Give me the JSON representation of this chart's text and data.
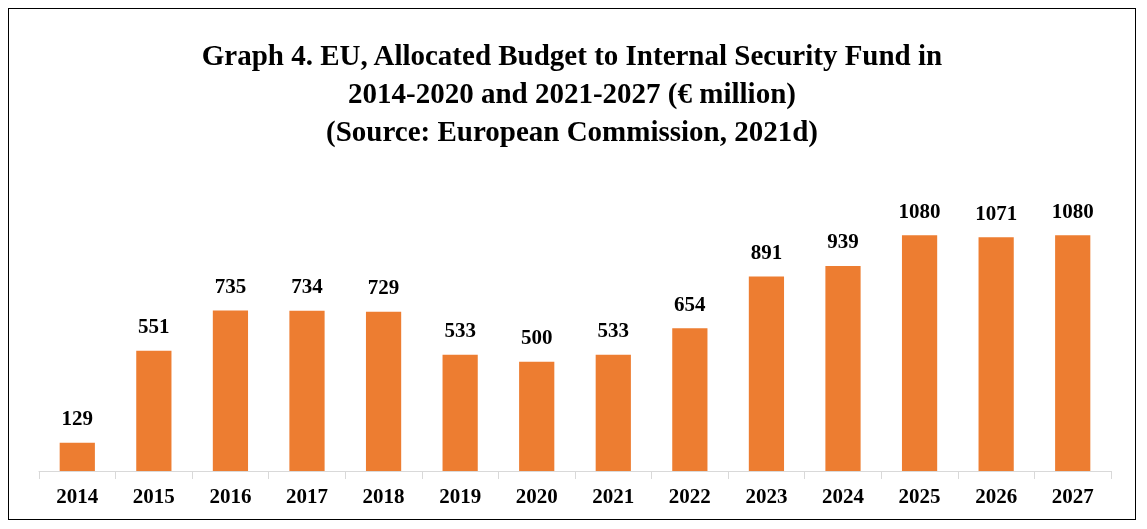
{
  "chart_data": {
    "type": "bar",
    "title": "Graph 4. EU, Allocated Budget to Internal Security Fund in\n2014-2020 and 2021-2027 (€ million)\n(Source: European Commission, 2021d)",
    "categories": [
      "2014",
      "2015",
      "2016",
      "2017",
      "2018",
      "2019",
      "2020",
      "2021",
      "2022",
      "2023",
      "2024",
      "2025",
      "2026",
      "2027"
    ],
    "values": [
      129,
      551,
      735,
      734,
      729,
      533,
      500,
      533,
      654,
      891,
      939,
      1080,
      1071,
      1080
    ],
    "color": "#ed7d31",
    "data_labels": true
  }
}
